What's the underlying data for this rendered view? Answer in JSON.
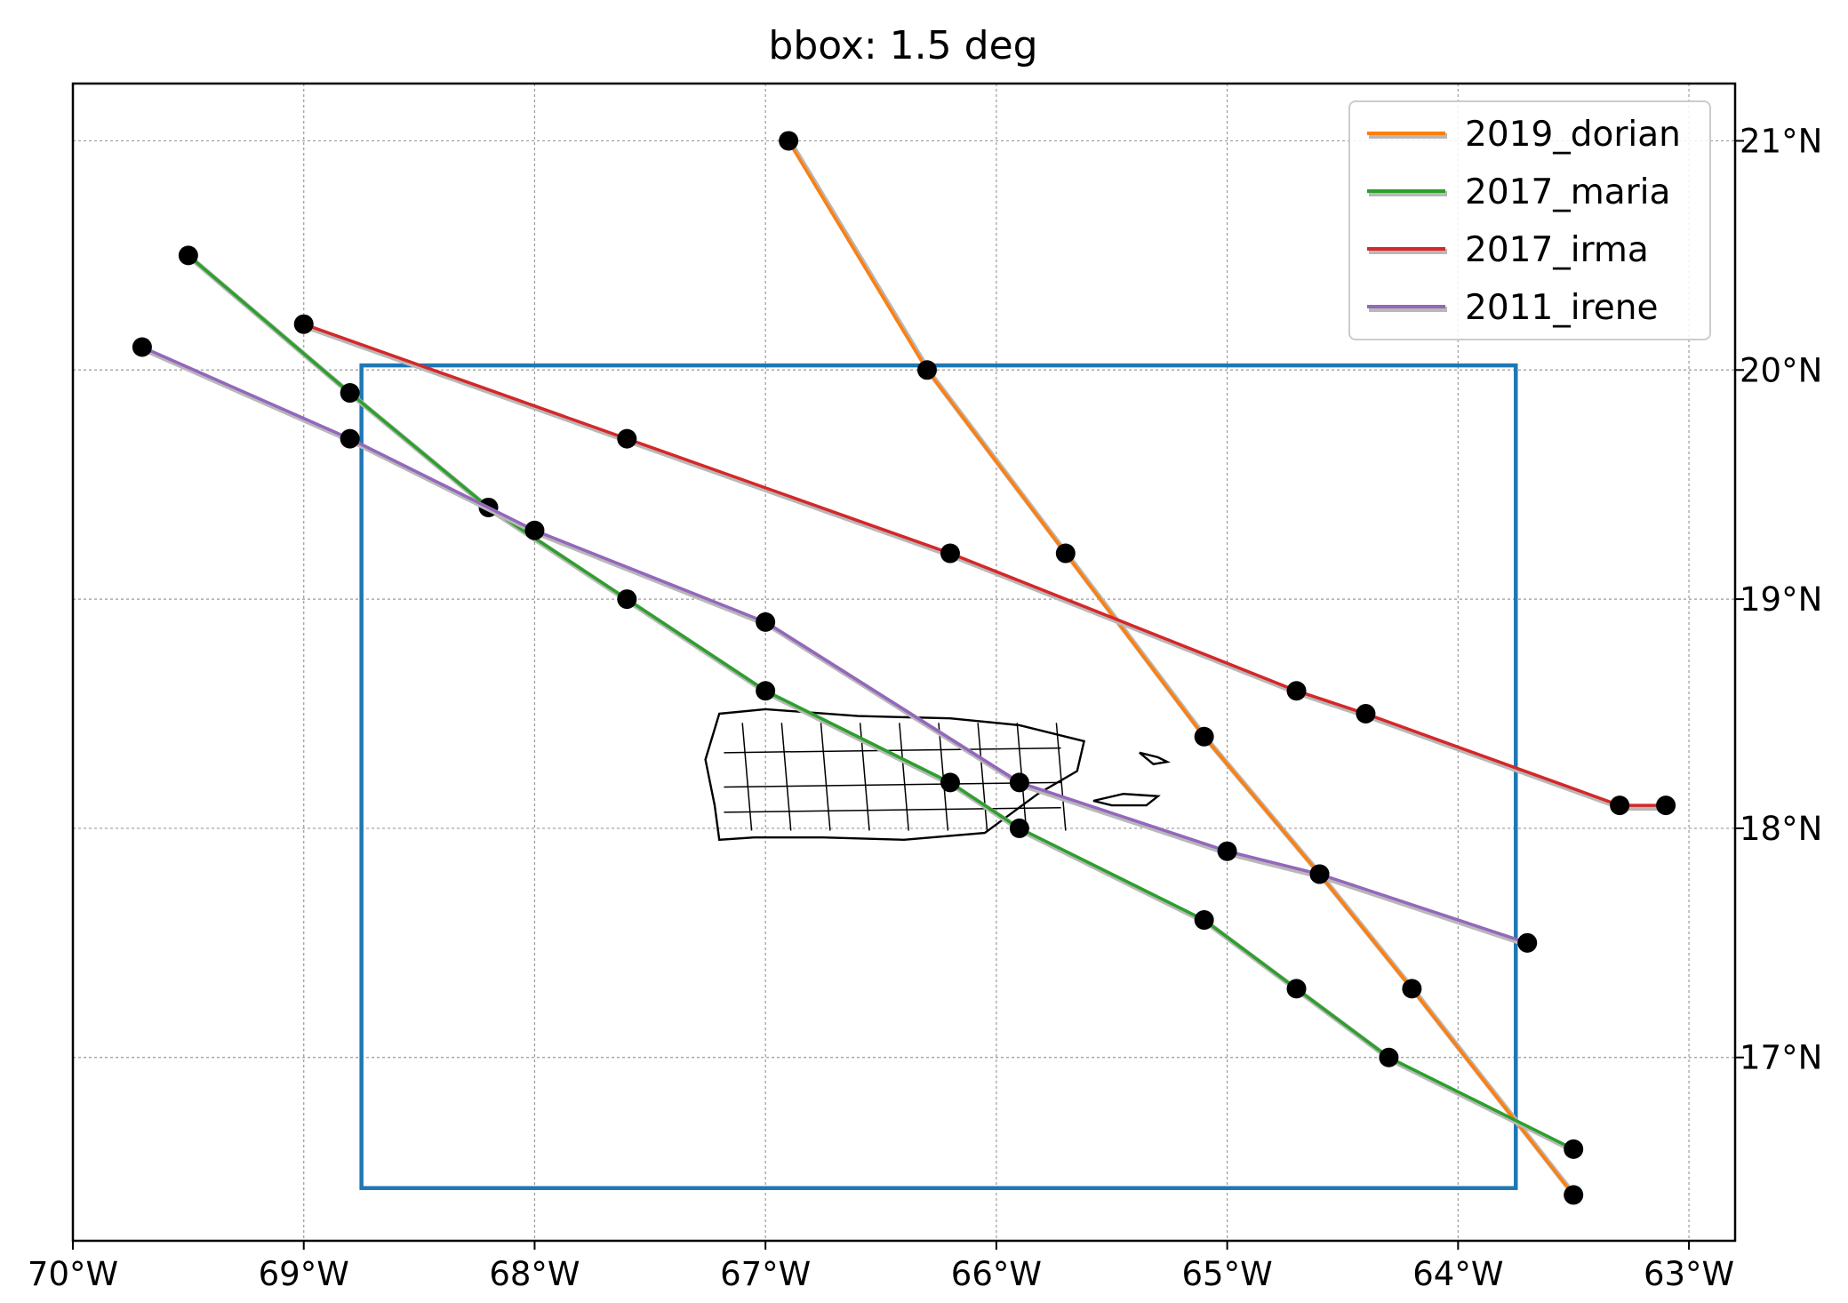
{
  "chart_data": {
    "type": "line",
    "title": "bbox: 1.5 deg",
    "xlabel": "",
    "ylabel": "",
    "xlim": [
      -70,
      -62.8
    ],
    "ylim": [
      16.2,
      21.25
    ],
    "grid": true,
    "grid_style": "dotted",
    "legend_position": "top-right",
    "x_ticks": [
      {
        "value": -70,
        "label": "70°W"
      },
      {
        "value": -69,
        "label": "69°W"
      },
      {
        "value": -68,
        "label": "68°W"
      },
      {
        "value": -67,
        "label": "67°W"
      },
      {
        "value": -66,
        "label": "66°W"
      },
      {
        "value": -65,
        "label": "65°W"
      },
      {
        "value": -64,
        "label": "64°W"
      },
      {
        "value": -63,
        "label": "63°W"
      }
    ],
    "y_ticks": [
      {
        "value": 17,
        "label": "17°N"
      },
      {
        "value": 18,
        "label": "18°N"
      },
      {
        "value": 19,
        "label": "19°N"
      },
      {
        "value": 20,
        "label": "20°N"
      },
      {
        "value": 21,
        "label": "21°N"
      }
    ],
    "bbox_rectangle": {
      "lon_min": -68.75,
      "lon_max": -63.75,
      "lat_min": 16.43,
      "lat_max": 20.02,
      "color": "#1f77b4"
    },
    "series": [
      {
        "name": "2019_dorian",
        "color": "#ff7f0e",
        "points": [
          [
            -66.9,
            21.0
          ],
          [
            -66.3,
            20.0
          ],
          [
            -65.7,
            19.2
          ],
          [
            -65.1,
            18.4
          ],
          [
            -64.6,
            17.8
          ],
          [
            -64.2,
            17.3
          ],
          [
            -63.5,
            16.4
          ]
        ]
      },
      {
        "name": "2017_maria",
        "color": "#2ca02c",
        "points": [
          [
            -69.5,
            20.5
          ],
          [
            -68.8,
            19.9
          ],
          [
            -68.2,
            19.4
          ],
          [
            -67.6,
            19.0
          ],
          [
            -67.0,
            18.6
          ],
          [
            -66.2,
            18.2
          ],
          [
            -65.9,
            18.0
          ],
          [
            -65.1,
            17.6
          ],
          [
            -64.7,
            17.3
          ],
          [
            -64.3,
            17.0
          ],
          [
            -63.5,
            16.6
          ]
        ]
      },
      {
        "name": "2017_irma",
        "color": "#d62728",
        "points": [
          [
            -69.0,
            20.2
          ],
          [
            -67.6,
            19.7
          ],
          [
            -66.2,
            19.2
          ],
          [
            -64.7,
            18.6
          ],
          [
            -64.4,
            18.5
          ],
          [
            -63.3,
            18.1
          ],
          [
            -63.1,
            18.1
          ]
        ]
      },
      {
        "name": "2011_irene",
        "color": "#9467bd",
        "points": [
          [
            -69.7,
            20.1
          ],
          [
            -68.8,
            19.7
          ],
          [
            -68.0,
            19.3
          ],
          [
            -67.0,
            18.9
          ],
          [
            -65.9,
            18.2
          ],
          [
            -65.0,
            17.9
          ],
          [
            -64.6,
            17.8
          ],
          [
            -63.7,
            17.5
          ]
        ]
      }
    ]
  }
}
